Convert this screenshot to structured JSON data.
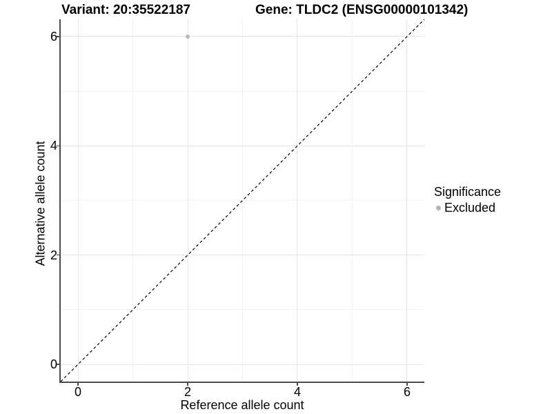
{
  "chart_data": {
    "type": "scatter",
    "title_left": "Variant: 20:35522187",
    "title_right": "Gene: TLDC2 (ENSG00000101342)",
    "xlabel": "Reference allele count",
    "ylabel": "Alternative allele count",
    "xlim": [
      -0.315,
      6.315
    ],
    "ylim": [
      -0.315,
      6.315
    ],
    "x_ticks": [
      0,
      2,
      4,
      6
    ],
    "y_ticks": [
      0,
      2,
      4,
      6
    ],
    "x_minor_ticks": [
      1,
      3,
      5
    ],
    "y_minor_ticks": [
      1,
      3,
      5
    ],
    "grid": "on",
    "points": [
      {
        "x": 2,
        "y": 6,
        "series": "Excluded"
      }
    ],
    "identity_line": {
      "equation": "y = x",
      "style": "dashed",
      "color": "#000000"
    },
    "legend": {
      "title": "Significance",
      "position": "right",
      "entries": [
        {
          "label": "Excluded",
          "color": "#b3b3b3"
        }
      ]
    },
    "colors": {
      "background": "#ffffff",
      "point": "#b9b9b9",
      "grid_major": "#e4e4e4",
      "grid_minor": "#f2f2f2",
      "axis_line": "#4a4a4a",
      "text": "#000000"
    }
  }
}
